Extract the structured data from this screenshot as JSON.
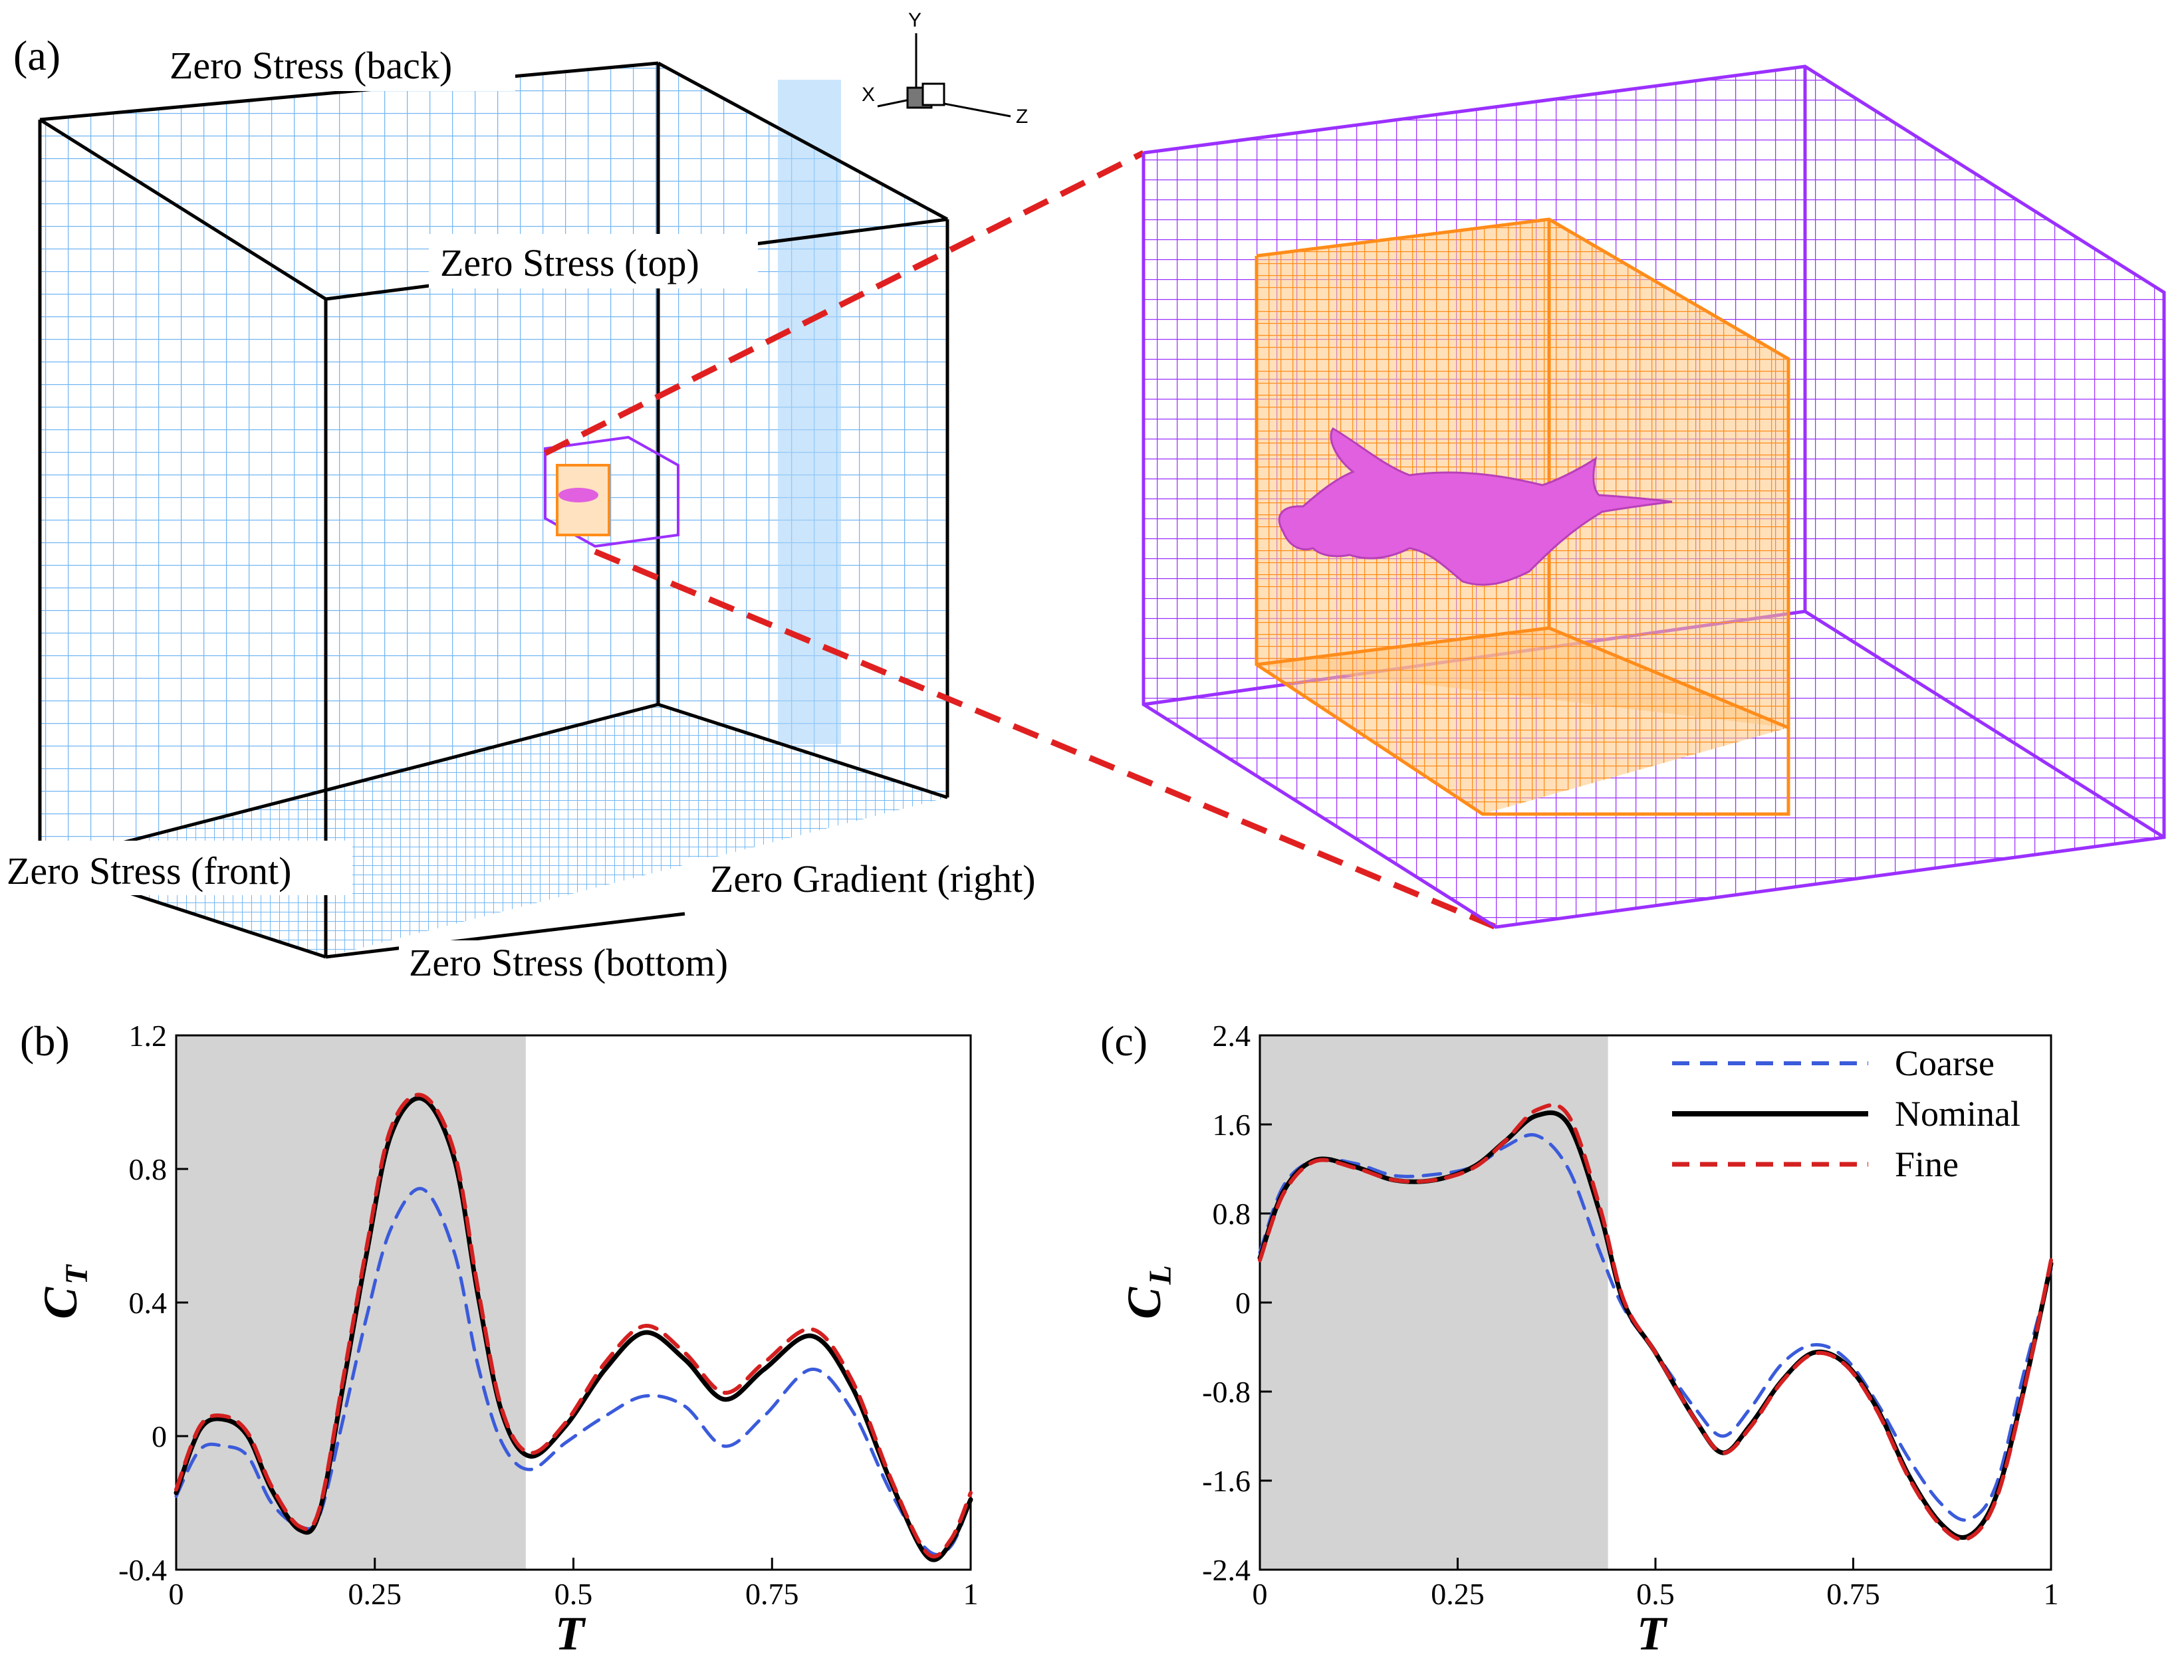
{
  "figure": {
    "panel_a": {
      "label": "(a)",
      "boundary_labels": {
        "back": "Zero Stress (back)",
        "top": "Zero Stress (top)",
        "front": "Zero Stress (front)",
        "right": "Zero Gradient (right)",
        "bottom": "Zero Stress (bottom)"
      },
      "axes_triad": {
        "y": "Y",
        "x": "X",
        "z": "Z"
      },
      "colors": {
        "outer_grid": "#5aaaf0",
        "outer_frame": "#000000",
        "mid_grid": "#9b30ff",
        "inner_grid": "#ff8c1a",
        "inner_fill": "#ffc680",
        "body": "#e060e0",
        "zoom_lines": "#e02020"
      }
    }
  },
  "chart_data": [
    {
      "type": "line",
      "panel": "(b)",
      "xlabel": "T",
      "ylabel": "C",
      "ylabel_sub": "T",
      "xlim": [
        0,
        1
      ],
      "ylim": [
        -0.4,
        1.2
      ],
      "xticks": [
        "0",
        "0.25",
        "0.5",
        "0.75",
        "1"
      ],
      "yticks": [
        "-0.4",
        "0",
        "0.4",
        "0.8",
        "1.2"
      ],
      "shaded_region": [
        0,
        0.44
      ],
      "x": [
        0,
        0.03,
        0.06,
        0.09,
        0.12,
        0.155,
        0.18,
        0.21,
        0.24,
        0.27,
        0.31,
        0.35,
        0.38,
        0.41,
        0.445,
        0.49,
        0.54,
        0.59,
        0.64,
        0.69,
        0.74,
        0.8,
        0.85,
        0.9,
        0.945,
        0.975,
        1.0
      ],
      "series": [
        {
          "name": "Coarse",
          "color": "#3b5bdb",
          "dash": "26,16",
          "width": 5,
          "values": [
            -0.18,
            -0.04,
            -0.03,
            -0.06,
            -0.2,
            -0.27,
            -0.24,
            0.05,
            0.36,
            0.62,
            0.74,
            0.55,
            0.21,
            -0.02,
            -0.1,
            -0.02,
            0.06,
            0.12,
            0.09,
            -0.03,
            0.06,
            0.2,
            0.08,
            -0.17,
            -0.34,
            -0.33,
            -0.19
          ]
        },
        {
          "name": "Nominal",
          "color": "#000000",
          "dash": "",
          "width": 7,
          "values": [
            -0.17,
            0.02,
            0.05,
            0.0,
            -0.16,
            -0.28,
            -0.23,
            0.15,
            0.55,
            0.9,
            1.01,
            0.83,
            0.42,
            0.07,
            -0.06,
            0.03,
            0.2,
            0.31,
            0.23,
            0.11,
            0.2,
            0.3,
            0.15,
            -0.14,
            -0.36,
            -0.32,
            -0.19
          ]
        },
        {
          "name": "Fine",
          "color": "#d42020",
          "dash": "26,16",
          "width": 6,
          "values": [
            -0.16,
            0.03,
            0.06,
            0.01,
            -0.15,
            -0.27,
            -0.22,
            0.17,
            0.57,
            0.92,
            1.02,
            0.85,
            0.44,
            0.08,
            -0.05,
            0.04,
            0.22,
            0.33,
            0.25,
            0.13,
            0.22,
            0.32,
            0.17,
            -0.13,
            -0.35,
            -0.31,
            -0.17
          ]
        }
      ]
    },
    {
      "type": "line",
      "panel": "(c)",
      "xlabel": "T",
      "ylabel": "C",
      "ylabel_sub": "L",
      "xlim": [
        0,
        1
      ],
      "ylim": [
        -2.4,
        2.4
      ],
      "xticks": [
        "0",
        "0.25",
        "0.5",
        "0.75",
        "1"
      ],
      "yticks": [
        "-2.4",
        "-1.6",
        "-0.8",
        "0",
        "0.8",
        "1.6",
        "2.4"
      ],
      "shaded_region": [
        0,
        0.44
      ],
      "legend": [
        "Coarse",
        "Nominal",
        "Fine"
      ],
      "x": [
        0,
        0.03,
        0.07,
        0.12,
        0.17,
        0.22,
        0.27,
        0.31,
        0.35,
        0.39,
        0.43,
        0.46,
        0.5,
        0.55,
        0.585,
        0.62,
        0.66,
        0.7,
        0.74,
        0.78,
        0.82,
        0.86,
        0.895,
        0.93,
        0.965,
        1.0
      ],
      "series": [
        {
          "name": "Coarse",
          "color": "#3b5bdb",
          "dash": "26,16",
          "width": 5,
          "values": [
            0.45,
            1.05,
            1.28,
            1.25,
            1.14,
            1.15,
            1.22,
            1.4,
            1.5,
            1.2,
            0.45,
            -0.05,
            -0.45,
            -0.95,
            -1.2,
            -0.95,
            -0.55,
            -0.38,
            -0.5,
            -0.9,
            -1.4,
            -1.8,
            -1.95,
            -1.65,
            -0.65,
            0.3
          ]
        },
        {
          "name": "Nominal",
          "color": "#000000",
          "dash": "",
          "width": 7,
          "values": [
            0.4,
            1.0,
            1.28,
            1.22,
            1.1,
            1.1,
            1.22,
            1.45,
            1.68,
            1.6,
            0.8,
            0.0,
            -0.45,
            -1.05,
            -1.35,
            -1.1,
            -0.7,
            -0.45,
            -0.55,
            -0.95,
            -1.55,
            -1.98,
            -2.1,
            -1.75,
            -0.8,
            0.35
          ]
        },
        {
          "name": "Fine",
          "color": "#d42020",
          "dash": "26,16",
          "width": 6,
          "values": [
            0.38,
            0.98,
            1.27,
            1.21,
            1.1,
            1.1,
            1.21,
            1.45,
            1.73,
            1.68,
            0.85,
            0.02,
            -0.45,
            -1.05,
            -1.35,
            -1.12,
            -0.71,
            -0.46,
            -0.56,
            -0.97,
            -1.57,
            -2.0,
            -2.12,
            -1.78,
            -0.82,
            0.38
          ]
        }
      ]
    }
  ]
}
